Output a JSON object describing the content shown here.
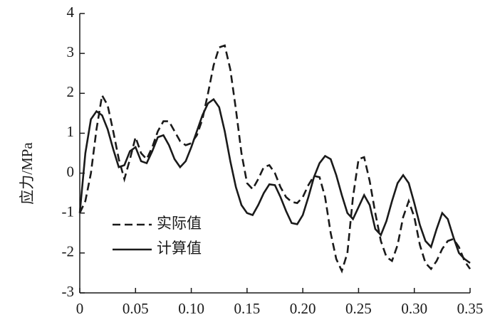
{
  "chart_data": {
    "type": "line",
    "y_label": "应力/MPa",
    "x": [
      0,
      0.005,
      0.01,
      0.015,
      0.02,
      0.025,
      0.03,
      0.035,
      0.04,
      0.045,
      0.05,
      0.055,
      0.06,
      0.065,
      0.07,
      0.075,
      0.08,
      0.085,
      0.09,
      0.095,
      0.1,
      0.105,
      0.11,
      0.115,
      0.12,
      0.125,
      0.13,
      0.135,
      0.14,
      0.145,
      0.15,
      0.155,
      0.16,
      0.165,
      0.17,
      0.175,
      0.18,
      0.185,
      0.19,
      0.195,
      0.2,
      0.205,
      0.21,
      0.215,
      0.22,
      0.225,
      0.23,
      0.235,
      0.24,
      0.245,
      0.25,
      0.255,
      0.26,
      0.265,
      0.27,
      0.275,
      0.28,
      0.285,
      0.29,
      0.295,
      0.3,
      0.305,
      0.31,
      0.315,
      0.32,
      0.325,
      0.33,
      0.335,
      0.34,
      0.345,
      0.35
    ],
    "series": [
      {
        "name": "实际值",
        "color": "#1a1a1a",
        "dashed": true,
        "values": [
          -1.0,
          -0.7,
          0.0,
          1.1,
          1.95,
          1.7,
          1.05,
          0.35,
          -0.15,
          0.35,
          0.9,
          0.5,
          0.35,
          0.65,
          1.05,
          1.3,
          1.3,
          1.05,
          0.8,
          0.7,
          0.75,
          0.95,
          1.35,
          2.0,
          2.7,
          3.15,
          3.2,
          2.6,
          1.6,
          0.5,
          -0.25,
          -0.4,
          -0.15,
          0.15,
          0.2,
          0.0,
          -0.35,
          -0.6,
          -0.72,
          -0.75,
          -0.6,
          -0.3,
          -0.07,
          -0.1,
          -0.6,
          -1.5,
          -2.15,
          -2.45,
          -2.0,
          -0.6,
          0.35,
          0.4,
          -0.2,
          -1.0,
          -1.7,
          -2.1,
          -2.2,
          -1.8,
          -1.1,
          -0.7,
          -1.1,
          -1.8,
          -2.25,
          -2.4,
          -2.2,
          -1.9,
          -1.7,
          -1.65,
          -1.85,
          -2.2,
          -2.4
        ]
      },
      {
        "name": "计算值",
        "color": "#1a1a1a",
        "dashed": false,
        "values": [
          -1.0,
          0.5,
          1.35,
          1.55,
          1.45,
          1.1,
          0.6,
          0.15,
          0.2,
          0.55,
          0.65,
          0.3,
          0.25,
          0.55,
          0.9,
          0.95,
          0.7,
          0.35,
          0.15,
          0.3,
          0.65,
          1.05,
          1.45,
          1.75,
          1.85,
          1.65,
          1.05,
          0.3,
          -0.35,
          -0.8,
          -1.0,
          -1.05,
          -0.8,
          -0.5,
          -0.28,
          -0.3,
          -0.6,
          -0.95,
          -1.25,
          -1.28,
          -1.05,
          -0.6,
          -0.1,
          0.25,
          0.43,
          0.35,
          -0.05,
          -0.55,
          -1.0,
          -1.15,
          -0.85,
          -0.55,
          -0.8,
          -1.4,
          -1.55,
          -1.2,
          -0.7,
          -0.25,
          -0.05,
          -0.25,
          -0.75,
          -1.3,
          -1.7,
          -1.85,
          -1.4,
          -1.0,
          -1.15,
          -1.6,
          -2.0,
          -2.15,
          -2.25
        ]
      }
    ],
    "xlim": [
      0,
      0.35
    ],
    "xticks": [
      0,
      0.05,
      {
        "value": 0.1,
        "label": "0.10"
      },
      0.15,
      {
        "value": 0.2,
        "label": "0.20"
      },
      0.25,
      {
        "value": 0.3,
        "label": "0.30"
      },
      0.35
    ],
    "ylim": [
      -3,
      4
    ],
    "yticks": [
      -3,
      -2,
      -1,
      0,
      1,
      2,
      3,
      4
    ],
    "grid": false,
    "legend": "lower left"
  }
}
